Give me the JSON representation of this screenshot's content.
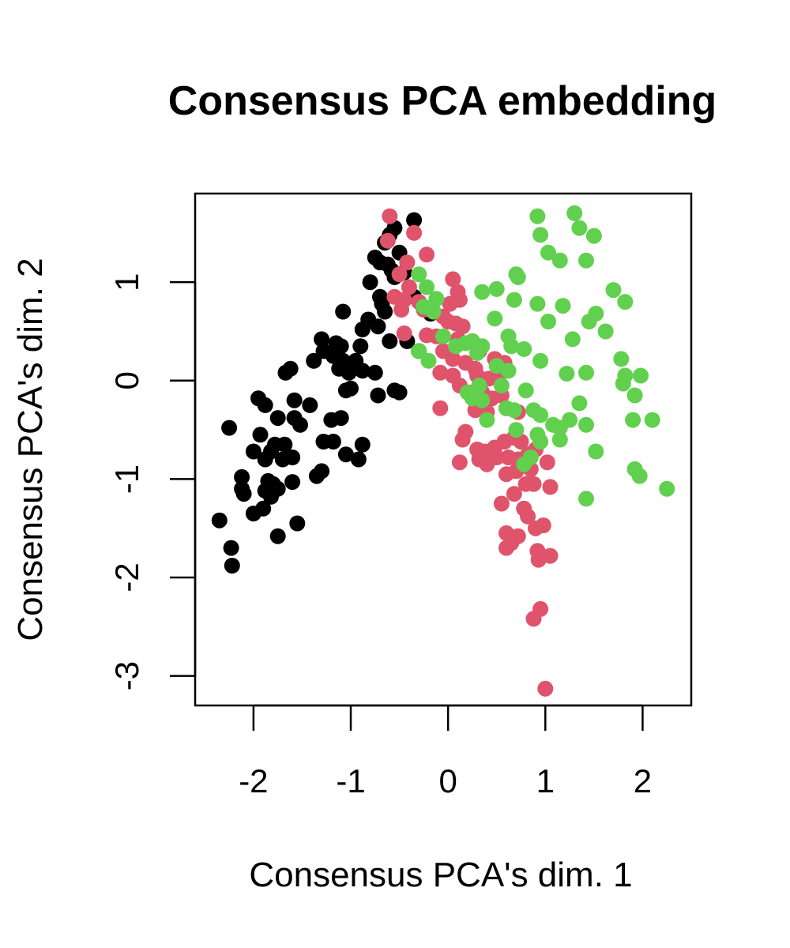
{
  "chart_data": {
    "type": "scatter",
    "title": "Consensus PCA embedding",
    "xlabel": "Consensus PCA's dim. 1",
    "ylabel": "Consensus PCA's dim. 2",
    "xlim": [
      -2.6,
      2.5
    ],
    "ylim": [
      -3.3,
      1.9
    ],
    "x_ticks": [
      -2,
      -1,
      0,
      1,
      2
    ],
    "x_tick_labels": [
      "-2",
      "-1",
      "0",
      "1",
      "2"
    ],
    "y_ticks": [
      -3,
      -2,
      -1,
      0,
      1
    ],
    "y_tick_labels": [
      "-3",
      "-2",
      "-1",
      "0",
      "1"
    ],
    "grid": false,
    "series": [
      {
        "color": "#000000",
        "points": [
          [
            -0.35,
            1.63
          ],
          [
            -0.55,
            1.55
          ],
          [
            -0.6,
            1.48
          ],
          [
            -0.65,
            1.4
          ],
          [
            -0.5,
            1.3
          ],
          [
            -0.75,
            1.25
          ],
          [
            -0.7,
            1.2
          ],
          [
            -0.62,
            1.18
          ],
          [
            -0.58,
            1.12
          ],
          [
            -0.55,
            1.05
          ],
          [
            -0.45,
            1.1
          ],
          [
            -0.8,
            1.0
          ],
          [
            -0.7,
            0.85
          ],
          [
            -0.68,
            0.78
          ],
          [
            -0.35,
            0.85
          ],
          [
            -0.65,
            0.7
          ],
          [
            -1.08,
            0.7
          ],
          [
            -0.82,
            0.62
          ],
          [
            -0.72,
            0.55
          ],
          [
            -0.88,
            0.52
          ],
          [
            -0.6,
            0.4
          ],
          [
            -0.42,
            0.4
          ],
          [
            -0.3,
            0.3
          ],
          [
            -0.18,
            0.68
          ],
          [
            -1.3,
            0.42
          ],
          [
            -1.15,
            0.38
          ],
          [
            -1.1,
            0.35
          ],
          [
            -0.9,
            0.35
          ],
          [
            -1.28,
            0.3
          ],
          [
            -1.38,
            0.2
          ],
          [
            -1.18,
            0.25
          ],
          [
            -1.08,
            0.2
          ],
          [
            -0.95,
            0.2
          ],
          [
            -1.12,
            0.12
          ],
          [
            -1.02,
            0.08
          ],
          [
            -0.88,
            0.1
          ],
          [
            -1.62,
            0.12
          ],
          [
            -1.67,
            0.08
          ],
          [
            -0.75,
            0.08
          ],
          [
            -1.0,
            -0.08
          ],
          [
            -1.05,
            -0.1
          ],
          [
            -0.72,
            -0.15
          ],
          [
            -0.55,
            -0.1
          ],
          [
            -0.5,
            -0.12
          ],
          [
            -1.95,
            -0.18
          ],
          [
            -1.88,
            -0.25
          ],
          [
            -1.58,
            -0.2
          ],
          [
            -1.42,
            -0.25
          ],
          [
            -1.75,
            -0.38
          ],
          [
            -1.58,
            -0.38
          ],
          [
            -1.52,
            -0.45
          ],
          [
            -1.1,
            -0.38
          ],
          [
            -1.2,
            -0.4
          ],
          [
            -2.25,
            -0.48
          ],
          [
            -1.93,
            -0.55
          ],
          [
            -1.78,
            -0.65
          ],
          [
            -1.68,
            -0.65
          ],
          [
            -1.82,
            -0.72
          ],
          [
            -1.28,
            -0.62
          ],
          [
            -1.18,
            -0.62
          ],
          [
            -0.88,
            -0.65
          ],
          [
            -2.0,
            -0.72
          ],
          [
            -1.88,
            -0.8
          ],
          [
            -1.7,
            -0.8
          ],
          [
            -1.6,
            -0.78
          ],
          [
            -1.05,
            -0.75
          ],
          [
            -0.92,
            -0.8
          ],
          [
            -1.3,
            -0.92
          ],
          [
            -1.35,
            -0.97
          ],
          [
            -2.12,
            -0.98
          ],
          [
            -1.85,
            -1.02
          ],
          [
            -1.8,
            -1.05
          ],
          [
            -1.6,
            -1.03
          ],
          [
            -2.12,
            -1.1
          ],
          [
            -2.1,
            -1.15
          ],
          [
            -1.88,
            -1.12
          ],
          [
            -1.75,
            -1.1
          ],
          [
            -1.82,
            -1.18
          ],
          [
            -1.9,
            -1.3
          ],
          [
            -2.0,
            -1.35
          ],
          [
            -1.55,
            -1.45
          ],
          [
            -2.35,
            -1.42
          ],
          [
            -1.75,
            -1.58
          ],
          [
            -2.23,
            -1.7
          ],
          [
            -2.22,
            -1.88
          ]
        ]
      },
      {
        "color": "#DF536B",
        "points": [
          [
            -0.6,
            1.67
          ],
          [
            -0.62,
            1.42
          ],
          [
            -0.35,
            1.5
          ],
          [
            -0.22,
            1.28
          ],
          [
            -0.42,
            1.2
          ],
          [
            -0.5,
            1.08
          ],
          [
            -0.4,
            0.95
          ],
          [
            -0.55,
            0.85
          ],
          [
            -0.45,
            0.82
          ],
          [
            -0.3,
            0.8
          ],
          [
            -0.48,
            0.72
          ],
          [
            -0.25,
            0.72
          ],
          [
            0.05,
            1.03
          ],
          [
            0.1,
            0.9
          ],
          [
            0.12,
            0.82
          ],
          [
            0.02,
            0.78
          ],
          [
            -0.15,
            0.7
          ],
          [
            -0.05,
            0.65
          ],
          [
            0.0,
            0.6
          ],
          [
            0.08,
            0.58
          ],
          [
            0.15,
            0.55
          ],
          [
            -0.45,
            0.48
          ],
          [
            -0.22,
            0.46
          ],
          [
            -0.12,
            0.45
          ],
          [
            0.1,
            0.42
          ],
          [
            0.25,
            0.4
          ],
          [
            0.32,
            0.3
          ],
          [
            -0.05,
            0.3
          ],
          [
            0.05,
            0.22
          ],
          [
            0.18,
            0.18
          ],
          [
            0.28,
            0.12
          ],
          [
            0.48,
            0.22
          ],
          [
            0.58,
            0.18
          ],
          [
            0.3,
            0.05
          ],
          [
            0.42,
            0.02
          ],
          [
            0.52,
            0.05
          ],
          [
            -0.08,
            0.08
          ],
          [
            0.05,
            0.05
          ],
          [
            0.12,
            -0.05
          ],
          [
            0.22,
            -0.12
          ],
          [
            0.35,
            -0.12
          ],
          [
            0.45,
            -0.18
          ],
          [
            0.55,
            -0.15
          ],
          [
            -0.08,
            -0.28
          ],
          [
            0.28,
            -0.3
          ],
          [
            0.4,
            -0.32
          ],
          [
            0.6,
            -0.28
          ],
          [
            0.72,
            -0.32
          ],
          [
            0.18,
            -0.52
          ],
          [
            0.15,
            -0.6
          ],
          [
            0.3,
            -0.7
          ],
          [
            0.38,
            -0.72
          ],
          [
            0.48,
            -0.68
          ],
          [
            0.58,
            -0.62
          ],
          [
            0.68,
            -0.58
          ],
          [
            0.75,
            -0.62
          ],
          [
            0.32,
            -0.8
          ],
          [
            0.4,
            -0.85
          ],
          [
            0.5,
            -0.78
          ],
          [
            0.12,
            -0.83
          ],
          [
            0.62,
            -0.78
          ],
          [
            0.72,
            -0.8
          ],
          [
            0.82,
            -0.75
          ],
          [
            0.9,
            -0.7
          ],
          [
            0.6,
            -0.95
          ],
          [
            0.7,
            -0.92
          ],
          [
            0.85,
            -0.9
          ],
          [
            1.02,
            -0.83
          ],
          [
            0.8,
            -1.05
          ],
          [
            0.88,
            -1.05
          ],
          [
            1.05,
            -1.08
          ],
          [
            0.68,
            -1.15
          ],
          [
            0.55,
            -1.25
          ],
          [
            0.78,
            -1.3
          ],
          [
            0.82,
            -1.38
          ],
          [
            0.6,
            -1.55
          ],
          [
            0.72,
            -1.58
          ],
          [
            0.9,
            -1.5
          ],
          [
            0.98,
            -1.47
          ],
          [
            0.65,
            -1.65
          ],
          [
            0.6,
            -1.7
          ],
          [
            0.92,
            -1.73
          ],
          [
            1.05,
            -1.78
          ],
          [
            0.93,
            -1.82
          ],
          [
            0.95,
            -2.32
          ],
          [
            0.88,
            -2.42
          ],
          [
            1.0,
            -3.13
          ]
        ]
      },
      {
        "color": "#61D04F",
        "points": [
          [
            1.3,
            1.7
          ],
          [
            0.92,
            1.67
          ],
          [
            1.35,
            1.55
          ],
          [
            1.5,
            1.47
          ],
          [
            0.95,
            1.48
          ],
          [
            1.03,
            1.3
          ],
          [
            1.15,
            1.22
          ],
          [
            1.42,
            1.22
          ],
          [
            0.7,
            1.08
          ],
          [
            0.72,
            1.05
          ],
          [
            0.5,
            0.93
          ],
          [
            0.35,
            0.9
          ],
          [
            1.7,
            0.92
          ],
          [
            1.82,
            0.8
          ],
          [
            0.68,
            0.82
          ],
          [
            0.92,
            0.78
          ],
          [
            1.18,
            0.76
          ],
          [
            -0.3,
            1.08
          ],
          [
            -0.22,
            0.95
          ],
          [
            -0.12,
            0.83
          ],
          [
            -0.25,
            0.75
          ],
          [
            -0.15,
            0.7
          ],
          [
            1.52,
            0.68
          ],
          [
            1.45,
            0.6
          ],
          [
            1.03,
            0.6
          ],
          [
            0.48,
            0.63
          ],
          [
            1.62,
            0.5
          ],
          [
            -0.05,
            0.45
          ],
          [
            0.62,
            0.45
          ],
          [
            0.25,
            0.4
          ],
          [
            1.28,
            0.42
          ],
          [
            0.08,
            0.35
          ],
          [
            0.18,
            0.38
          ],
          [
            0.35,
            0.35
          ],
          [
            0.65,
            0.35
          ],
          [
            0.78,
            0.32
          ],
          [
            -0.3,
            0.3
          ],
          [
            0.3,
            0.28
          ],
          [
            0.95,
            0.2
          ],
          [
            -0.2,
            0.2
          ],
          [
            0.5,
            0.15
          ],
          [
            0.62,
            0.1
          ],
          [
            1.78,
            0.22
          ],
          [
            1.22,
            0.07
          ],
          [
            1.42,
            0.08
          ],
          [
            1.82,
            0.05
          ],
          [
            1.98,
            0.05
          ],
          [
            1.8,
            -0.03
          ],
          [
            0.32,
            -0.05
          ],
          [
            0.2,
            -0.12
          ],
          [
            0.55,
            -0.05
          ],
          [
            0.8,
            -0.1
          ],
          [
            1.92,
            -0.15
          ],
          [
            0.25,
            -0.18
          ],
          [
            0.35,
            -0.2
          ],
          [
            1.35,
            -0.23
          ],
          [
            0.6,
            -0.28
          ],
          [
            0.68,
            -0.3
          ],
          [
            0.88,
            -0.3
          ],
          [
            0.95,
            -0.35
          ],
          [
            1.25,
            -0.4
          ],
          [
            1.9,
            -0.4
          ],
          [
            2.1,
            -0.4
          ],
          [
            0.4,
            -0.4
          ],
          [
            1.08,
            -0.45
          ],
          [
            1.15,
            -0.48
          ],
          [
            1.42,
            -0.45
          ],
          [
            0.7,
            -0.5
          ],
          [
            0.92,
            -0.55
          ],
          [
            1.15,
            -0.6
          ],
          [
            0.95,
            -0.62
          ],
          [
            1.52,
            -0.72
          ],
          [
            0.85,
            -0.78
          ],
          [
            0.78,
            -0.85
          ],
          [
            1.92,
            -0.9
          ],
          [
            1.97,
            -0.97
          ],
          [
            2.25,
            -1.1
          ],
          [
            1.42,
            -1.2
          ]
        ]
      }
    ]
  }
}
